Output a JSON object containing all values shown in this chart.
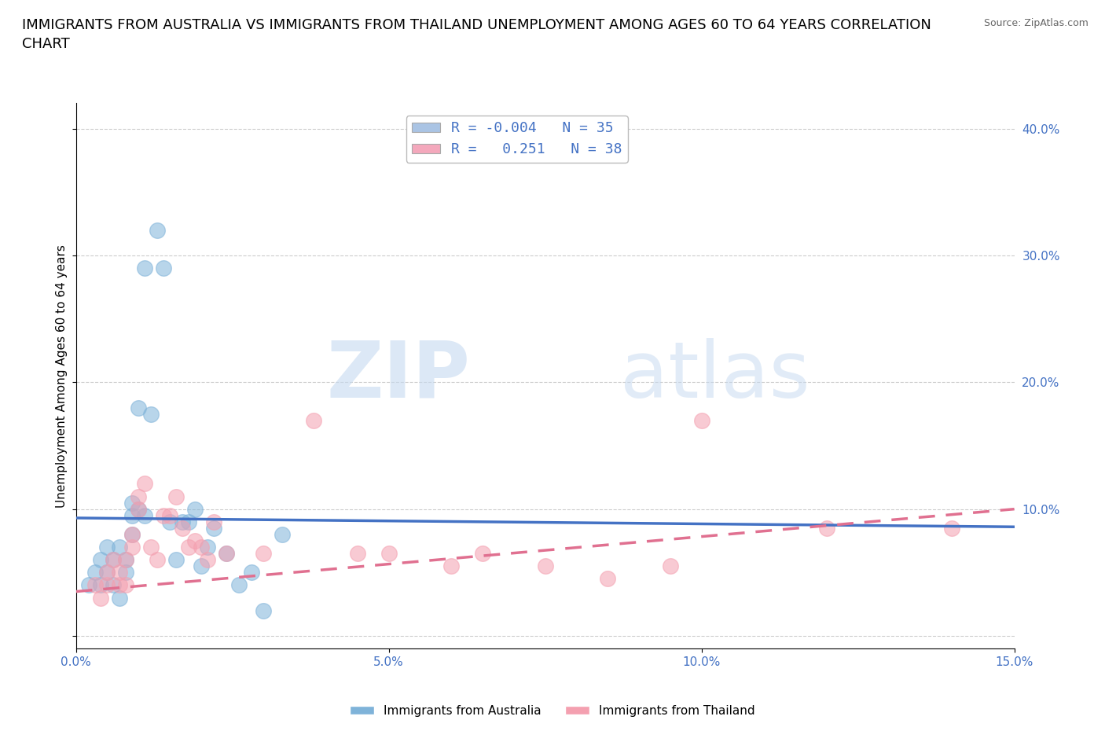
{
  "title": "IMMIGRANTS FROM AUSTRALIA VS IMMIGRANTS FROM THAILAND UNEMPLOYMENT AMONG AGES 60 TO 64 YEARS CORRELATION\nCHART",
  "source": "Source: ZipAtlas.com",
  "ylabel": "Unemployment Among Ages 60 to 64 years",
  "xlim": [
    0.0,
    0.15
  ],
  "ylim": [
    -0.01,
    0.42
  ],
  "xticks": [
    0.0,
    0.05,
    0.1,
    0.15
  ],
  "xtick_labels": [
    "0.0%",
    "5.0%",
    "10.0%",
    "15.0%"
  ],
  "yticks": [
    0.0,
    0.1,
    0.2,
    0.3,
    0.4
  ],
  "right_ytick_labels": [
    "",
    "10.0%",
    "20.0%",
    "30.0%",
    "40.0%"
  ],
  "watermark_zip": "ZIP",
  "watermark_atlas": "atlas",
  "legend_entries": [
    {
      "label": "R = -0.004   N = 35",
      "color": "#aac4e4"
    },
    {
      "label": "R =   0.251   N = 38",
      "color": "#f4a8bc"
    }
  ],
  "australia_scatter_x": [
    0.002,
    0.003,
    0.004,
    0.004,
    0.005,
    0.005,
    0.006,
    0.006,
    0.007,
    0.007,
    0.008,
    0.008,
    0.009,
    0.009,
    0.009,
    0.01,
    0.01,
    0.011,
    0.011,
    0.012,
    0.013,
    0.014,
    0.015,
    0.016,
    0.017,
    0.018,
    0.019,
    0.02,
    0.021,
    0.022,
    0.024,
    0.026,
    0.028,
    0.03,
    0.033
  ],
  "australia_scatter_y": [
    0.04,
    0.05,
    0.06,
    0.04,
    0.07,
    0.05,
    0.06,
    0.04,
    0.03,
    0.07,
    0.05,
    0.06,
    0.095,
    0.105,
    0.08,
    0.1,
    0.18,
    0.29,
    0.095,
    0.175,
    0.32,
    0.29,
    0.09,
    0.06,
    0.09,
    0.09,
    0.1,
    0.055,
    0.07,
    0.085,
    0.065,
    0.04,
    0.05,
    0.02,
    0.08
  ],
  "thailand_scatter_x": [
    0.003,
    0.004,
    0.005,
    0.005,
    0.006,
    0.007,
    0.007,
    0.008,
    0.008,
    0.009,
    0.009,
    0.01,
    0.01,
    0.011,
    0.012,
    0.013,
    0.014,
    0.015,
    0.016,
    0.017,
    0.018,
    0.019,
    0.02,
    0.021,
    0.022,
    0.024,
    0.03,
    0.038,
    0.045,
    0.05,
    0.06,
    0.065,
    0.075,
    0.085,
    0.095,
    0.1,
    0.12,
    0.14
  ],
  "thailand_scatter_y": [
    0.04,
    0.03,
    0.05,
    0.04,
    0.06,
    0.04,
    0.05,
    0.06,
    0.04,
    0.07,
    0.08,
    0.1,
    0.11,
    0.12,
    0.07,
    0.06,
    0.095,
    0.095,
    0.11,
    0.085,
    0.07,
    0.075,
    0.07,
    0.06,
    0.09,
    0.065,
    0.065,
    0.17,
    0.065,
    0.065,
    0.055,
    0.065,
    0.055,
    0.045,
    0.055,
    0.17,
    0.085,
    0.085
  ],
  "australia_color": "#7fb3d9",
  "thailand_color": "#f4a0b0",
  "australia_line_color": "#4472c4",
  "thailand_line_color": "#e07090",
  "australia_trend_x": [
    0.0,
    0.15
  ],
  "australia_trend_y": [
    0.093,
    0.086
  ],
  "thailand_trend_x": [
    0.0,
    0.15
  ],
  "thailand_trend_y": [
    0.035,
    0.1
  ],
  "title_fontsize": 13,
  "axis_label_fontsize": 11,
  "tick_fontsize": 11,
  "scatter_size": 200,
  "background_color": "#ffffff",
  "plot_bg_color": "#ffffff",
  "grid_color": "#cccccc",
  "right_ytick_color": "#4472c4",
  "xtick_color": "#4472c4"
}
